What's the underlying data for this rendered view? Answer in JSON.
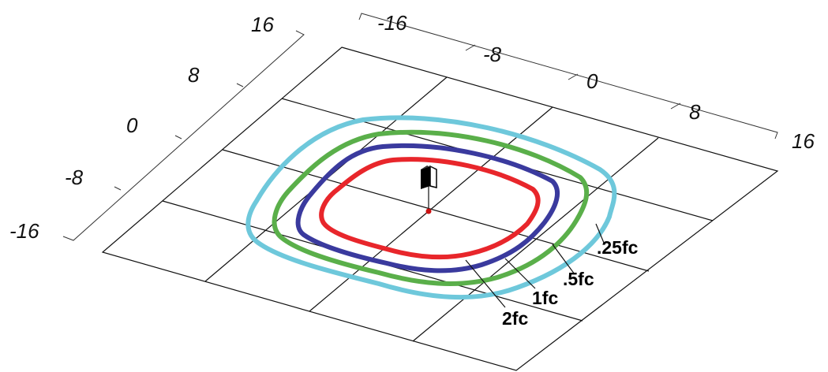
{
  "diagram": {
    "axis_ticks_right": [
      "-16",
      "-8",
      "0",
      "8",
      "16"
    ],
    "axis_ticks_left": [
      "16",
      "8",
      "0",
      "-8",
      "-16"
    ],
    "contours": [
      {
        "label": ".25fc",
        "color": "#6ec8db"
      },
      {
        "label": ".5fc",
        "color": "#5aaf4a"
      },
      {
        "label": "1fc",
        "color": "#3a3a9e"
      },
      {
        "label": "2fc",
        "color": "#e8262b"
      }
    ],
    "grid_color": "#111111",
    "fixture_icon": "light-fixture-icon",
    "center_marker_color": "#cc1111"
  }
}
